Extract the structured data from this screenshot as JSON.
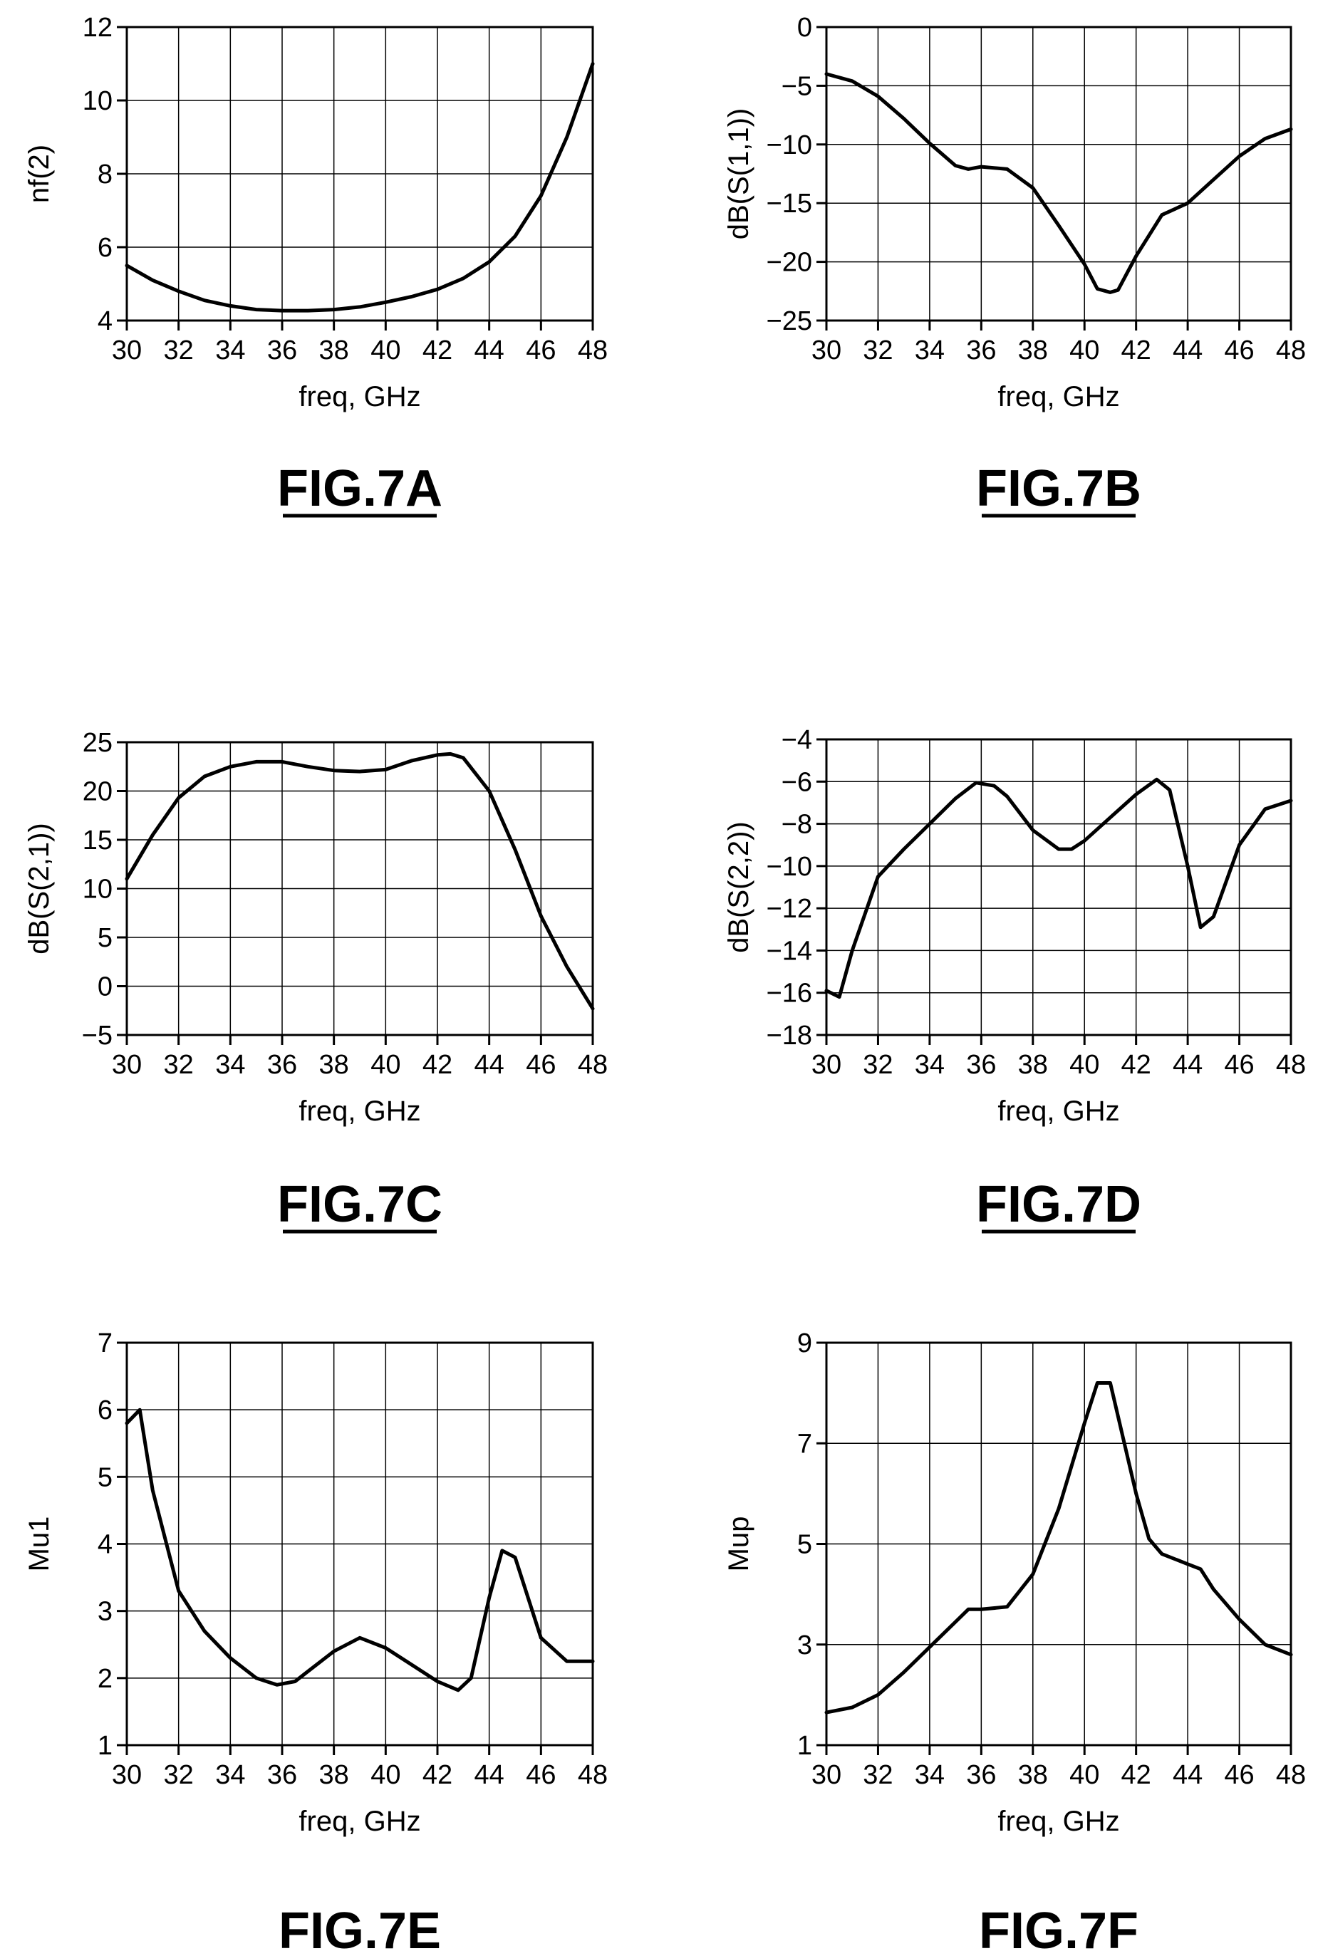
{
  "chart_data": [
    {
      "type": "line",
      "figure_label": "FIG.7A",
      "xlabel": "freq, GHz",
      "ylabel": "nf(2)",
      "xlim": [
        30,
        48
      ],
      "ylim": [
        4,
        12
      ],
      "xticks": [
        30,
        32,
        34,
        36,
        38,
        40,
        42,
        44,
        46,
        48
      ],
      "yticks": [
        4,
        6,
        8,
        10,
        12
      ],
      "grid": true,
      "series": [
        {
          "x": [
            30,
            31,
            32,
            33,
            34,
            35,
            36,
            37,
            38,
            39,
            40,
            41,
            42,
            43,
            44,
            45,
            46,
            47,
            48
          ],
          "y": [
            5.5,
            5.1,
            4.8,
            4.55,
            4.4,
            4.3,
            4.27,
            4.27,
            4.3,
            4.37,
            4.5,
            4.65,
            4.85,
            5.15,
            5.6,
            6.3,
            7.4,
            9.0,
            11.0
          ]
        }
      ]
    },
    {
      "type": "line",
      "figure_label": "FIG.7B",
      "xlabel": "freq, GHz",
      "ylabel": "dB(S(1,1))",
      "xlim": [
        30,
        48
      ],
      "ylim": [
        -25,
        0
      ],
      "xticks": [
        30,
        32,
        34,
        36,
        38,
        40,
        42,
        44,
        46,
        48
      ],
      "yticks": [
        0,
        -5,
        -10,
        -15,
        -20,
        -25
      ],
      "grid": true,
      "series": [
        {
          "x": [
            30,
            31,
            32,
            33,
            34,
            35,
            35.5,
            36,
            37,
            38,
            39,
            40,
            40.5,
            41,
            41.3,
            42,
            43,
            44,
            45,
            46,
            47,
            48
          ],
          "y": [
            -4,
            -4.6,
            -5.9,
            -7.8,
            -9.9,
            -11.8,
            -12.1,
            -11.9,
            -12.1,
            -13.7,
            -16.9,
            -20.2,
            -22.3,
            -22.6,
            -22.4,
            -19.5,
            -16,
            -15,
            -13,
            -11,
            -9.5,
            -8.7
          ]
        }
      ]
    },
    {
      "type": "line",
      "figure_label": "FIG.7C",
      "xlabel": "freq, GHz",
      "ylabel": "dB(S(2,1))",
      "xlim": [
        30,
        48
      ],
      "ylim": [
        -5,
        25
      ],
      "xticks": [
        30,
        32,
        34,
        36,
        38,
        40,
        42,
        44,
        46,
        48
      ],
      "yticks": [
        25,
        20,
        15,
        10,
        5,
        0,
        -5
      ],
      "grid": true,
      "series": [
        {
          "x": [
            30,
            31,
            32,
            33,
            34,
            35,
            36,
            37,
            38,
            39,
            40,
            41,
            42,
            42.5,
            43,
            44,
            45,
            46,
            47,
            48
          ],
          "y": [
            11,
            15.5,
            19.3,
            21.5,
            22.5,
            23,
            23,
            22.5,
            22.1,
            22,
            22.2,
            23.1,
            23.7,
            23.8,
            23.4,
            20,
            14,
            7.2,
            2,
            -2.3
          ]
        }
      ]
    },
    {
      "type": "line",
      "figure_label": "FIG.7D",
      "xlabel": "freq, GHz",
      "ylabel": "dB(S(2,2))",
      "xlim": [
        30,
        48
      ],
      "ylim": [
        -18,
        -4
      ],
      "xticks": [
        30,
        32,
        34,
        36,
        38,
        40,
        42,
        44,
        46,
        48
      ],
      "yticks": [
        -4,
        -6,
        -8,
        -10,
        -12,
        -14,
        -16,
        -18
      ],
      "grid": true,
      "series": [
        {
          "x": [
            30,
            30.5,
            31,
            32,
            33,
            34,
            35,
            35.8,
            36.5,
            37,
            38,
            39,
            39.5,
            40,
            41,
            42,
            42.8,
            43.3,
            44,
            44.5,
            45,
            46,
            47,
            48
          ],
          "y": [
            -15.9,
            -16.2,
            -14,
            -10.5,
            -9.2,
            -8,
            -6.8,
            -6.05,
            -6.2,
            -6.7,
            -8.3,
            -9.2,
            -9.2,
            -8.8,
            -7.7,
            -6.6,
            -5.9,
            -6.4,
            -10,
            -12.9,
            -12.4,
            -9,
            -7.3,
            -6.9
          ]
        }
      ]
    },
    {
      "type": "line",
      "figure_label": "FIG.7E",
      "xlabel": "freq, GHz",
      "ylabel": "Mu1",
      "xlim": [
        30,
        48
      ],
      "ylim": [
        1,
        7
      ],
      "xticks": [
        30,
        32,
        34,
        36,
        38,
        40,
        42,
        44,
        46,
        48
      ],
      "yticks": [
        1,
        2,
        3,
        4,
        5,
        6,
        7
      ],
      "grid": true,
      "series": [
        {
          "x": [
            30,
            30.5,
            31,
            32,
            33,
            34,
            35,
            35.8,
            36.5,
            37,
            38,
            39,
            40,
            41,
            42,
            42.8,
            43.3,
            44,
            44.5,
            45,
            46,
            47,
            48
          ],
          "y": [
            5.8,
            6.0,
            4.8,
            3.3,
            2.7,
            2.3,
            2.0,
            1.9,
            1.95,
            2.1,
            2.4,
            2.6,
            2.45,
            2.2,
            1.95,
            1.82,
            2.0,
            3.2,
            3.9,
            3.8,
            2.6,
            2.25,
            2.25
          ]
        }
      ]
    },
    {
      "type": "line",
      "figure_label": "FIG.7F",
      "xlabel": "freq, GHz",
      "ylabel": "Mup",
      "xlim": [
        30,
        48
      ],
      "ylim": [
        1,
        9
      ],
      "xticks": [
        30,
        32,
        34,
        36,
        38,
        40,
        42,
        44,
        46,
        48
      ],
      "yticks": [
        1,
        3,
        5,
        7,
        9
      ],
      "grid": true,
      "series": [
        {
          "x": [
            30,
            31,
            32,
            33,
            34,
            35,
            35.5,
            36,
            37,
            38,
            39,
            40,
            40.5,
            41,
            42,
            42.5,
            43,
            44,
            44.5,
            45,
            46,
            47,
            48
          ],
          "y": [
            1.65,
            1.75,
            2.0,
            2.45,
            2.95,
            3.45,
            3.7,
            3.7,
            3.75,
            4.4,
            5.7,
            7.4,
            8.2,
            8.2,
            6.0,
            5.1,
            4.8,
            4.6,
            4.5,
            4.1,
            3.5,
            3.0,
            2.8
          ]
        }
      ]
    }
  ]
}
